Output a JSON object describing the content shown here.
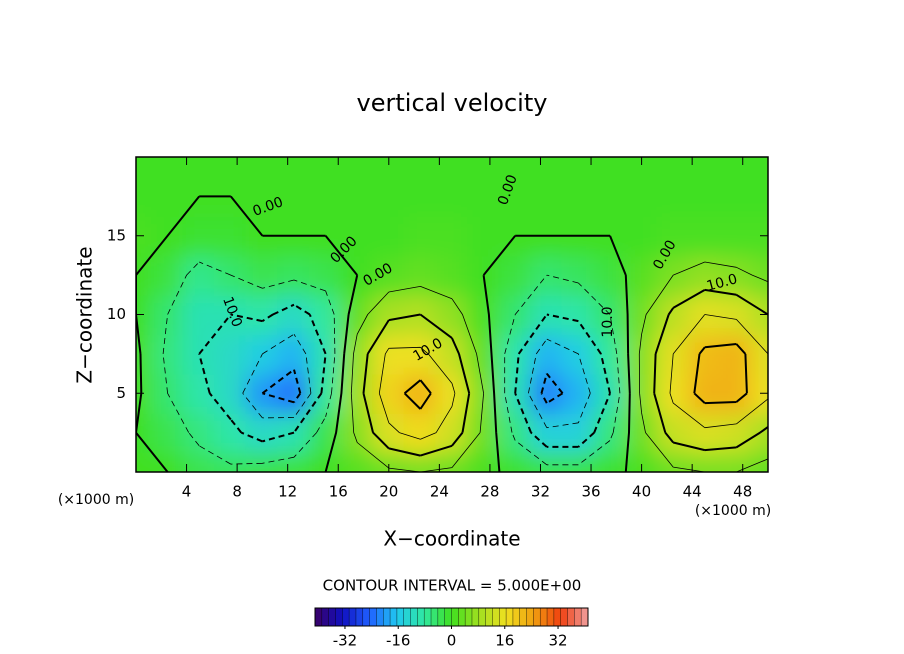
{
  "chart_data": {
    "type": "contour",
    "title": "vertical velocity",
    "xlabel": "X−coordinate",
    "ylabel": "Z−coordinate",
    "xunit": "(×1000 m)",
    "yunit": "(×1000 m)",
    "xlim": [
      0,
      50
    ],
    "ylim": [
      0,
      20
    ],
    "xticks": [
      4,
      8,
      12,
      16,
      20,
      24,
      28,
      32,
      36,
      40,
      44,
      48
    ],
    "yticks": [
      5,
      10,
      15
    ],
    "contour_interval": 5,
    "contour_interval_label": "CONTOUR INTERVAL = 5.000E+00",
    "contour_labels": [
      "0.00",
      "0.00",
      "0.00",
      "0.00",
      "0.00",
      "10.0",
      "10.0",
      "10.0",
      "10.0"
    ],
    "clim": [
      -41,
      41
    ],
    "cticks": [
      -32,
      -16,
      0,
      16,
      32
    ],
    "field": {
      "x": [
        0,
        2.5,
        5,
        7.5,
        10,
        12.5,
        15,
        17.5,
        20,
        22.5,
        25,
        27.5,
        30,
        32.5,
        35,
        37.5,
        40,
        42.5,
        45,
        47.5,
        50
      ],
      "z": [
        0,
        2.5,
        5,
        7.5,
        10,
        12.5,
        15,
        17.5,
        20
      ],
      "values": [
        [
          0,
          0,
          -3,
          -4,
          -3,
          -2,
          0,
          2,
          4,
          5,
          4,
          1,
          -1,
          -3,
          -3,
          -1,
          1,
          4,
          5,
          5,
          3
        ],
        [
          0,
          -3,
          -6,
          -9,
          -12,
          -10,
          -3,
          6,
          14,
          17,
          13,
          4,
          -6,
          -14,
          -14,
          -6,
          4,
          12,
          14,
          13,
          9
        ],
        [
          1,
          -5,
          -9,
          -12,
          -20,
          -23,
          -8,
          8,
          18,
          22,
          16,
          5,
          -10,
          -22,
          -18,
          -10,
          6,
          16,
          22,
          22,
          16
        ],
        [
          1,
          -6,
          -10,
          -12,
          -15,
          -18,
          -10,
          7,
          16,
          16,
          12,
          3,
          -9,
          -18,
          -15,
          -8,
          6,
          15,
          21,
          22,
          15
        ],
        [
          0,
          -5,
          -10,
          -10,
          -9,
          -12,
          -8,
          3,
          9,
          10,
          7,
          1,
          -5,
          -10,
          -9,
          -5,
          4,
          11,
          15,
          14,
          10
        ],
        [
          0,
          -2,
          -7,
          -5,
          -3,
          -4,
          -3,
          0,
          2,
          3,
          2,
          0,
          -2,
          -5,
          -4,
          -2,
          2,
          5,
          7,
          6,
          4
        ],
        [
          1,
          0,
          -1,
          -1,
          0,
          0,
          0,
          0,
          0,
          1,
          1,
          0,
          0,
          0,
          0,
          0,
          0,
          1,
          1,
          1,
          1
        ],
        [
          0,
          0,
          0,
          0,
          0,
          0,
          0,
          0,
          0,
          0,
          0,
          0,
          0,
          0,
          0,
          0,
          0,
          0,
          0,
          0,
          0
        ],
        [
          0,
          0,
          0,
          0,
          0,
          0,
          0,
          0,
          0,
          0,
          0,
          0,
          0,
          0,
          0,
          0,
          0,
          0,
          0,
          0,
          0
        ]
      ]
    }
  }
}
